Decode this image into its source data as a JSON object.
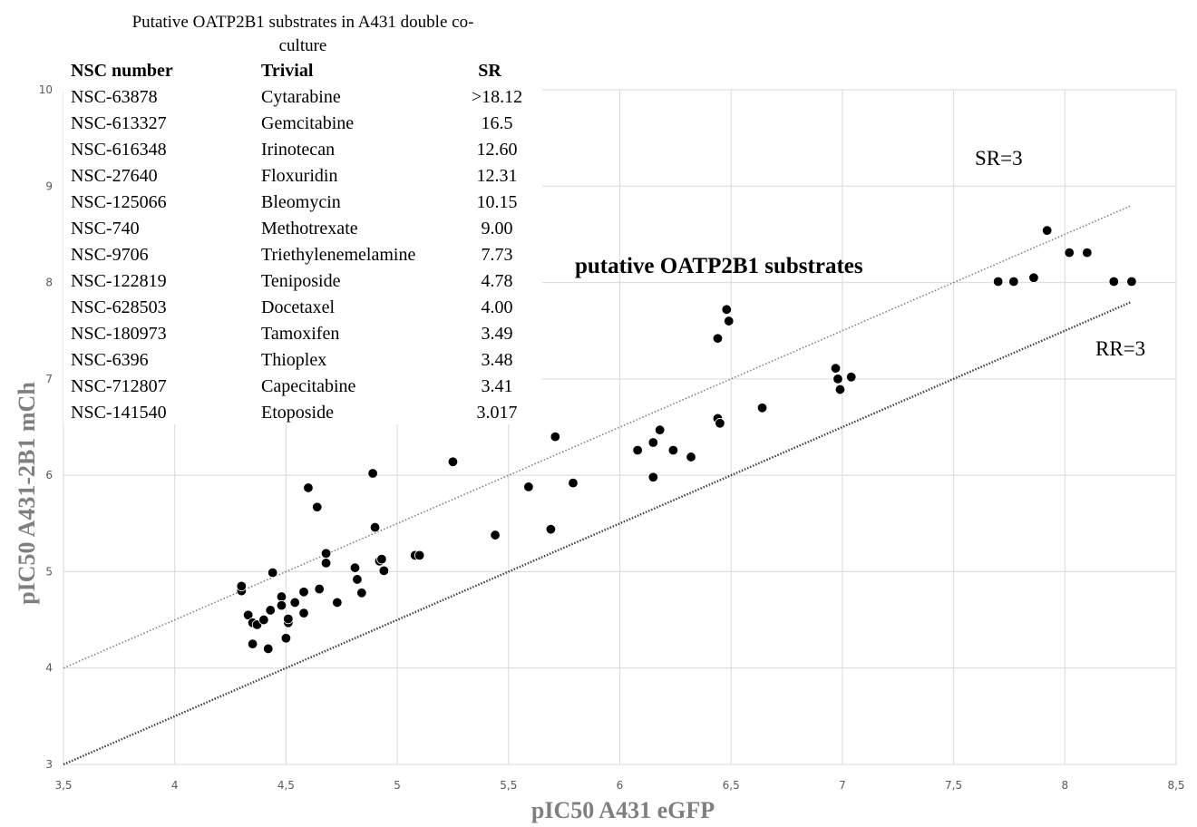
{
  "chart_data": {
    "type": "scatter",
    "xlabel": "pIC50 A431 eGFP",
    "ylabel": "pIC50 A431-2B1 mCh",
    "xlim": [
      3.5,
      8.5
    ],
    "ylim": [
      3,
      10
    ],
    "x_ticks": [
      "3,5",
      "4",
      "4,5",
      "5",
      "5,5",
      "6",
      "6,5",
      "7",
      "7,5",
      "8",
      "8,5"
    ],
    "y_ticks": [
      "3",
      "4",
      "5",
      "6",
      "7",
      "8",
      "9",
      "10"
    ],
    "grid": true,
    "marker_color": "#000000",
    "points": [
      {
        "x": 4.3,
        "y": 4.8
      },
      {
        "x": 4.3,
        "y": 4.85
      },
      {
        "x": 4.33,
        "y": 4.55
      },
      {
        "x": 4.35,
        "y": 4.47
      },
      {
        "x": 4.35,
        "y": 4.25
      },
      {
        "x": 4.37,
        "y": 4.45
      },
      {
        "x": 4.4,
        "y": 4.5
      },
      {
        "x": 4.42,
        "y": 4.2
      },
      {
        "x": 4.43,
        "y": 4.6
      },
      {
        "x": 4.44,
        "y": 4.99
      },
      {
        "x": 4.48,
        "y": 4.74
      },
      {
        "x": 4.48,
        "y": 4.65
      },
      {
        "x": 4.5,
        "y": 4.31
      },
      {
        "x": 4.51,
        "y": 4.47
      },
      {
        "x": 4.51,
        "y": 4.51
      },
      {
        "x": 4.54,
        "y": 4.68
      },
      {
        "x": 4.58,
        "y": 4.79
      },
      {
        "x": 4.58,
        "y": 4.57
      },
      {
        "x": 4.6,
        "y": 5.87
      },
      {
        "x": 4.64,
        "y": 5.67
      },
      {
        "x": 4.65,
        "y": 4.82
      },
      {
        "x": 4.68,
        "y": 5.19
      },
      {
        "x": 4.68,
        "y": 5.09
      },
      {
        "x": 4.73,
        "y": 4.68
      },
      {
        "x": 4.81,
        "y": 5.04
      },
      {
        "x": 4.82,
        "y": 4.92
      },
      {
        "x": 4.84,
        "y": 4.78
      },
      {
        "x": 4.89,
        "y": 6.02
      },
      {
        "x": 4.9,
        "y": 5.46
      },
      {
        "x": 4.92,
        "y": 5.11
      },
      {
        "x": 4.93,
        "y": 5.13
      },
      {
        "x": 4.94,
        "y": 5.01
      },
      {
        "x": 5.08,
        "y": 5.17
      },
      {
        "x": 5.1,
        "y": 5.17
      },
      {
        "x": 5.25,
        "y": 6.14
      },
      {
        "x": 5.44,
        "y": 5.38
      },
      {
        "x": 5.59,
        "y": 5.88
      },
      {
        "x": 5.69,
        "y": 5.44
      },
      {
        "x": 5.71,
        "y": 6.4
      },
      {
        "x": 5.79,
        "y": 5.92
      },
      {
        "x": 6.08,
        "y": 6.26
      },
      {
        "x": 6.15,
        "y": 6.34
      },
      {
        "x": 6.15,
        "y": 5.98
      },
      {
        "x": 6.18,
        "y": 6.47
      },
      {
        "x": 6.24,
        "y": 6.26
      },
      {
        "x": 6.32,
        "y": 6.19
      },
      {
        "x": 6.44,
        "y": 6.59
      },
      {
        "x": 6.45,
        "y": 6.54
      },
      {
        "x": 6.44,
        "y": 7.42
      },
      {
        "x": 6.48,
        "y": 7.72
      },
      {
        "x": 6.49,
        "y": 7.6
      },
      {
        "x": 6.64,
        "y": 6.7
      },
      {
        "x": 6.97,
        "y": 7.11
      },
      {
        "x": 6.98,
        "y": 7.0
      },
      {
        "x": 6.99,
        "y": 6.89
      },
      {
        "x": 7.04,
        "y": 7.02
      },
      {
        "x": 7.7,
        "y": 8.01
      },
      {
        "x": 7.77,
        "y": 8.01
      },
      {
        "x": 7.86,
        "y": 8.05
      },
      {
        "x": 7.92,
        "y": 8.54
      },
      {
        "x": 8.02,
        "y": 8.31
      },
      {
        "x": 8.1,
        "y": 8.31
      },
      {
        "x": 8.22,
        "y": 8.01
      },
      {
        "x": 8.3,
        "y": 8.01
      }
    ],
    "lines": [
      {
        "label": "SR=3",
        "x": [
          3.5,
          8.3
        ],
        "y": [
          4.0,
          8.8
        ]
      },
      {
        "label": "RR=3",
        "x": [
          3.5,
          8.3
        ],
        "y": [
          3.0,
          7.8
        ]
      }
    ],
    "annotations": {
      "sr": "SR=3",
      "rr": "RR=3",
      "region": "putative OATP2B1 substrates"
    }
  },
  "table": {
    "title_line1": "Putative OATP2B1 substrates  in A431 double co-",
    "title_line2": "culture",
    "headers": [
      "NSC number",
      "Trivial",
      "SR"
    ],
    "rows": [
      [
        "NSC-63878",
        "Cytarabine",
        ">18.12"
      ],
      [
        "NSC-613327",
        "Gemcitabine",
        "16.5"
      ],
      [
        "NSC-616348",
        "Irinotecan",
        "12.60"
      ],
      [
        "NSC-27640",
        "Floxuridin",
        "12.31"
      ],
      [
        "NSC-125066",
        "Bleomycin",
        "10.15"
      ],
      [
        "NSC-740",
        "Methotrexate",
        "9.00"
      ],
      [
        "NSC-9706",
        "Triethylenemelamine",
        "7.73"
      ],
      [
        "NSC-122819",
        "Teniposide",
        "4.78"
      ],
      [
        "NSC-628503",
        "Docetaxel",
        "4.00"
      ],
      [
        "NSC-180973",
        "Tamoxifen",
        "3.49"
      ],
      [
        "NSC-6396",
        "Thioplex",
        "3.48"
      ],
      [
        "NSC-712807",
        "Capecitabine",
        "3.41"
      ],
      [
        "NSC-141540",
        "Etoposide",
        "3.017"
      ]
    ]
  }
}
